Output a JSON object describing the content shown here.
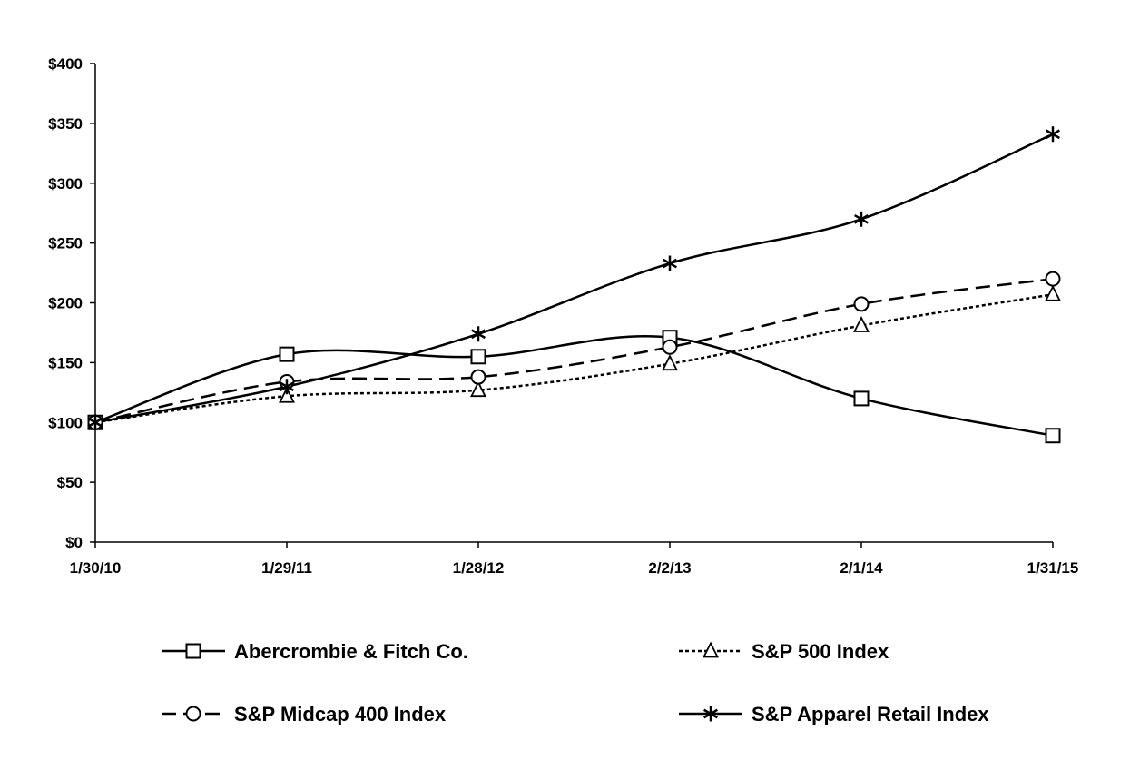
{
  "chart_data": {
    "type": "line",
    "title": "",
    "xlabel": "",
    "ylabel": "",
    "categories": [
      "1/30/10",
      "1/29/11",
      "1/28/12",
      "2/2/13",
      "2/1/14",
      "1/31/15"
    ],
    "ylim": [
      0,
      400
    ],
    "yticks": [
      0,
      50,
      100,
      150,
      200,
      250,
      300,
      350,
      400
    ],
    "ytick_labels": [
      "$0",
      "$50",
      "$100",
      "$150",
      "$200",
      "$250",
      "$300",
      "$350",
      "$400"
    ],
    "grid": false,
    "legend_position": "bottom",
    "series": [
      {
        "name": "Abercrombie & Fitch Co.",
        "values": [
          100,
          157,
          155,
          171,
          120,
          89
        ],
        "marker": "square",
        "dash": "solid",
        "color": "#000000"
      },
      {
        "name": "S&P 500 Index",
        "values": [
          100,
          122,
          127,
          149,
          181,
          207
        ],
        "marker": "triangle",
        "dash": "dotted",
        "color": "#000000"
      },
      {
        "name": "S&P Midcap 400 Index",
        "values": [
          100,
          134,
          138,
          163,
          199,
          220
        ],
        "marker": "circle",
        "dash": "dashed",
        "color": "#000000"
      },
      {
        "name": "S&P Apparel Retail Index",
        "values": [
          100,
          130,
          174,
          233,
          270,
          341
        ],
        "marker": "star",
        "dash": "solid",
        "color": "#000000"
      }
    ]
  }
}
